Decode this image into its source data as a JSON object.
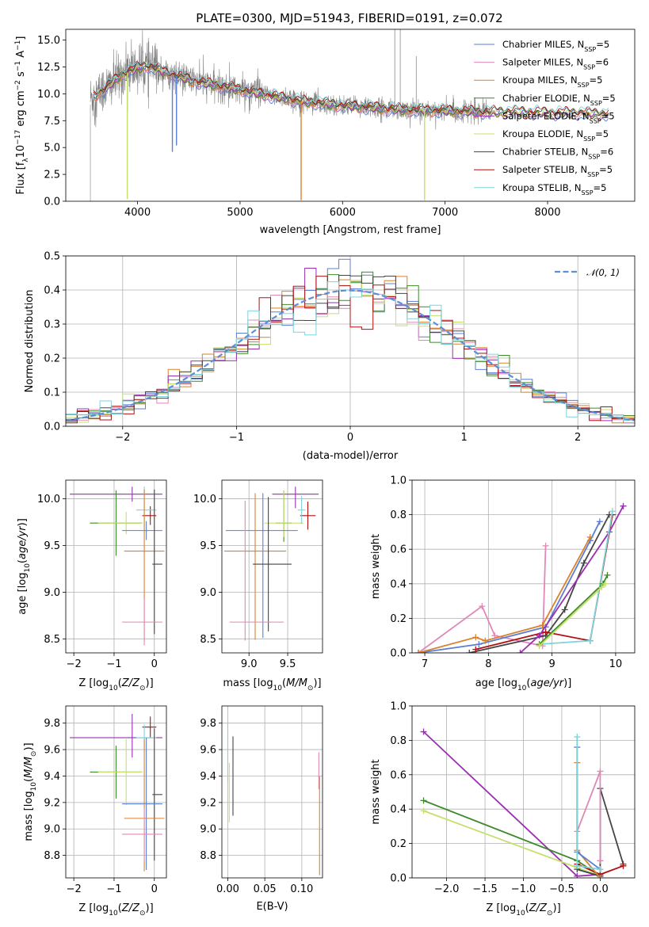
{
  "figure_title": "PLATE=0300, MJD=51943, FIBERID=0191, z=0.072",
  "colors": {
    "Chabrier MILES": "#5b7fd6",
    "Salpeter MILES": "#e088b8",
    "Kroupa MILES": "#d9822b",
    "Chabrier ELODIE": "#3d8a2a",
    "Salpeter ELODIE": "#9a2fb0",
    "Kroupa ELODIE": "#c5e06a",
    "Chabrier STELIB": "#454545",
    "Salpeter STELIB": "#b01010",
    "Kroupa STELIB": "#7fd3dc",
    "data": "#808080",
    "normal": "#5b8fd6"
  },
  "chart_data": [
    {
      "id": "spectrum",
      "type": "line",
      "title": "PLATE=0300, MJD=51943, FIBERID=0191, z=0.072",
      "xlabel": "wavelength [Angstrom, rest frame]",
      "ylabel": "Flux [f_λ10^-17 erg cm^-2 s^-1 A^-1]",
      "xlim": [
        3300,
        8850
      ],
      "ylim": [
        0,
        16
      ],
      "xticks": [
        4000,
        5000,
        6000,
        7000,
        8000
      ],
      "yticks": [
        0.0,
        2.5,
        5.0,
        7.5,
        10.0,
        12.5,
        15.0
      ],
      "grid": false,
      "legend_position": "top-right",
      "legend": [
        "Chabrier MILES, N_SSP=5",
        "Salpeter MILES, N_SSP=6",
        "Kroupa MILES, N_SSP=5",
        "Chabrier ELODIE, N_SSP=5",
        "Salpeter ELODIE, N_SSP=5",
        "Kroupa ELODIE, N_SSP=5",
        "Chabrier STELIB, N_SSP=6",
        "Salpeter STELIB, N_SSP=5",
        "Kroupa STELIB, N_SSP=5"
      ],
      "continuum_x": [
        3550,
        3700,
        3850,
        4000,
        4100,
        4300,
        4500,
        4700,
        5000,
        5300,
        5600,
        6000,
        6300,
        6600,
        7000,
        7400,
        7700,
        8000,
        8300,
        8600
      ],
      "continuum_y": [
        9.6,
        10.6,
        11.8,
        12.4,
        12.6,
        11.9,
        11.3,
        10.9,
        10.4,
        9.8,
        9.3,
        8.9,
        8.7,
        8.5,
        8.4,
        8.3,
        8.3,
        8.2,
        8.2,
        8.1
      ],
      "absorption_lines": [
        [
          3900,
          0.2
        ],
        [
          4340,
          4.6
        ],
        [
          4380,
          5.2
        ],
        [
          5596,
          0.1
        ],
        [
          6800,
          0.1
        ]
      ],
      "emission_lines": [
        [
          6510,
          16.0
        ],
        [
          6563,
          16.0
        ],
        [
          6720,
          13.5
        ]
      ]
    },
    {
      "id": "residuals",
      "type": "histogram",
      "xlabel": "(data-model)/error",
      "ylabel": "Normed distribution",
      "xlim": [
        -2.5,
        2.5
      ],
      "ylim": [
        0,
        0.5
      ],
      "xticks": [
        -2,
        -1,
        0,
        1,
        2
      ],
      "yticks": [
        0.0,
        0.1,
        0.2,
        0.3,
        0.4,
        0.5
      ],
      "grid": true,
      "legend_position": "top-right",
      "legend": [
        "𝒩(0, 1)"
      ],
      "bin_width": 0.1,
      "bin_start": -2.5,
      "gaussian": {
        "mu": 0,
        "sigma": 1
      }
    },
    {
      "id": "age-Z",
      "type": "errorbar",
      "xlabel": "Z [log10(Z/Z⊙)]",
      "ylabel": "age [log10(age/yr)]",
      "xlim": [
        -2.2,
        0.3
      ],
      "ylim": [
        8.35,
        10.2
      ],
      "xticks": [
        -2,
        -1,
        0
      ],
      "yticks": [
        8.5,
        9.0,
        9.5,
        10.0
      ],
      "grid": true,
      "points": [
        {
          "model": "Salpeter ELODIE",
          "x": -0.55,
          "xerr": [
            1.55,
            0.75
          ],
          "y": 10.05,
          "yerr": [
            0.08,
            0.08
          ]
        },
        {
          "model": "Chabrier ELODIE",
          "x": -0.95,
          "xerr": [
            0.65,
            0.65
          ],
          "y": 9.74,
          "yerr": [
            0.35,
            0.35
          ]
        },
        {
          "model": "Kroupa ELODIE",
          "x": -0.7,
          "xerr": [
            0.7,
            0.4
          ],
          "y": 9.74,
          "yerr": [
            0.12,
            0.12
          ]
        },
        {
          "model": "Chabrier MILES",
          "x": -0.2,
          "xerr": [
            0.6,
            0.4
          ],
          "y": 9.66,
          "yerr": [
            0.1,
            0.1
          ]
        },
        {
          "model": "Salpeter STELIB",
          "x": -0.1,
          "xerr": [
            0.2,
            0.15
          ],
          "y": 9.82,
          "yerr": [
            0.1,
            0.1
          ]
        },
        {
          "model": "Kroupa STELIB",
          "x": -0.25,
          "xerr": [
            0.2,
            0.3
          ],
          "y": 9.88,
          "yerr": [
            0.25,
            0.25
          ]
        },
        {
          "model": "Kroupa MILES",
          "x": -0.25,
          "xerr": [
            0.5,
            0.5
          ],
          "y": 9.44,
          "yerr": [
            0.95,
            0.66
          ]
        },
        {
          "model": "Chabrier STELIB",
          "x": 0.0,
          "xerr": [
            0.05,
            0.2
          ],
          "y": 9.3,
          "yerr": [
            0.75,
            0.8
          ]
        },
        {
          "model": "Salpeter MILES",
          "x": -0.25,
          "xerr": [
            0.55,
            0.45
          ],
          "y": 8.68,
          "yerr": [
            0.25,
            0.25
          ]
        }
      ]
    },
    {
      "id": "age-mass",
      "type": "errorbar",
      "xlabel": "mass [log10(M/M⊙)]",
      "ylabel": "",
      "xlim": [
        8.65,
        9.95
      ],
      "ylim": [
        8.35,
        10.2
      ],
      "xticks": [
        9.0,
        9.5
      ],
      "yticks": [
        8.5,
        9.0,
        9.5,
        10.0
      ],
      "grid": true,
      "points": [
        {
          "model": "Salpeter ELODIE",
          "x": 9.6,
          "xerr": [
            0.3,
            0.3
          ],
          "y": 10.05,
          "yerr": [
            0.15,
            0.08
          ]
        },
        {
          "model": "Chabrier ELODIE",
          "x": 9.45,
          "xerr": [
            0.1,
            0.1
          ],
          "y": 9.74,
          "yerr": [
            0.2,
            0.35
          ]
        },
        {
          "model": "Kroupa ELODIE",
          "x": 9.45,
          "xerr": [
            0.25,
            0.25
          ],
          "y": 9.74,
          "yerr": [
            0.15,
            0.35
          ]
        },
        {
          "model": "Salpeter STELIB",
          "x": 9.76,
          "xerr": [
            0.1,
            0.1
          ],
          "y": 9.82,
          "yerr": [
            0.15,
            0.15
          ]
        },
        {
          "model": "Kroupa STELIB",
          "x": 9.68,
          "xerr": [
            0.05,
            0.05
          ],
          "y": 9.88,
          "yerr": [
            0.15,
            0.15
          ]
        },
        {
          "model": "Chabrier MILES",
          "x": 9.18,
          "xerr": [
            0.48,
            0.45
          ],
          "y": 9.66,
          "yerr": [
            1.15,
            0.4
          ]
        },
        {
          "model": "Kroupa MILES",
          "x": 9.08,
          "xerr": [
            0.4,
            0.4
          ],
          "y": 9.44,
          "yerr": [
            0.95,
            0.62
          ]
        },
        {
          "model": "Chabrier STELIB",
          "x": 9.25,
          "xerr": [
            0.2,
            0.3
          ],
          "y": 9.3,
          "yerr": [
            0.72,
            0.72
          ]
        },
        {
          "model": "Salpeter MILES",
          "x": 8.95,
          "xerr": [
            0.2,
            0.5
          ],
          "y": 8.68,
          "yerr": [
            0.2,
            1.3
          ]
        }
      ]
    },
    {
      "id": "weight-age",
      "type": "line",
      "xlabel": "age [log10(age/yr)]",
      "ylabel": "mass weight",
      "xlim": [
        6.8,
        10.3
      ],
      "ylim": [
        0,
        1.0
      ],
      "xticks": [
        7,
        8,
        9,
        10
      ],
      "yticks": [
        0.0,
        0.2,
        0.4,
        0.6,
        0.8,
        1.0
      ],
      "grid": true,
      "series": [
        {
          "model": "Salpeter MILES",
          "x": [
            6.9,
            7.9,
            8.1,
            8.85,
            8.9
          ],
          "y": [
            0.0,
            0.27,
            0.1,
            0.04,
            0.62
          ]
        },
        {
          "model": "Chabrier MILES",
          "x": [
            6.9,
            7.85,
            8.9,
            9.6,
            9.75
          ],
          "y": [
            0.0,
            0.05,
            0.15,
            0.65,
            0.76
          ]
        },
        {
          "model": "Kroupa MILES",
          "x": [
            6.9,
            7.8,
            7.95,
            8.85,
            9.6
          ],
          "y": [
            0.0,
            0.09,
            0.07,
            0.16,
            0.67
          ]
        },
        {
          "model": "Chabrier STELIB",
          "x": [
            7.7,
            8.9,
            9.2,
            9.5,
            9.9
          ],
          "y": [
            0.0,
            0.1,
            0.25,
            0.52,
            0.8
          ]
        },
        {
          "model": "Salpeter STELIB",
          "x": [
            7.8,
            8.9,
            9.6,
            9.95
          ],
          "y": [
            0.02,
            0.12,
            0.07,
            0.8
          ]
        },
        {
          "model": "Salpeter ELODIE",
          "x": [
            8.5,
            8.8,
            9.9,
            10.12
          ],
          "y": [
            0.0,
            0.1,
            0.7,
            0.85
          ]
        },
        {
          "model": "Kroupa STELIB",
          "x": [
            8.8,
            9.6,
            9.95
          ],
          "y": [
            0.05,
            0.07,
            0.82
          ]
        },
        {
          "model": "Chabrier ELODIE",
          "x": [
            8.8,
            9.8,
            9.87
          ],
          "y": [
            0.05,
            0.4,
            0.45
          ]
        },
        {
          "model": "Kroupa ELODIE",
          "x": [
            8.8,
            9.78,
            9.84
          ],
          "y": [
            0.04,
            0.38,
            0.4
          ]
        }
      ]
    },
    {
      "id": "mass-Z",
      "type": "errorbar",
      "xlabel": "Z [log10(Z/Z⊙)]",
      "ylabel": "mass [log10(M/M⊙)]",
      "xlim": [
        -2.2,
        0.3
      ],
      "ylim": [
        8.63,
        9.93
      ],
      "xticks": [
        -2,
        -1,
        0
      ],
      "yticks": [
        8.8,
        9.0,
        9.2,
        9.4,
        9.6,
        9.8
      ],
      "grid": true,
      "points": [
        {
          "model": "Salpeter ELODIE",
          "x": -0.55,
          "xerr": [
            1.55,
            0.75
          ],
          "y": 9.69,
          "yerr": [
            0.15,
            0.18
          ]
        },
        {
          "model": "Salpeter STELIB",
          "x": -0.1,
          "xerr": [
            0.2,
            0.15
          ],
          "y": 9.77,
          "yerr": [
            0.08,
            0.08
          ]
        },
        {
          "model": "Kroupa STELIB",
          "x": -0.25,
          "xerr": [
            0.2,
            0.3
          ],
          "y": 9.69,
          "yerr": [
            0.1,
            0.1
          ]
        },
        {
          "model": "Chabrier ELODIE",
          "x": -0.95,
          "xerr": [
            0.65,
            0.65
          ],
          "y": 9.43,
          "yerr": [
            0.2,
            0.2
          ]
        },
        {
          "model": "Kroupa ELODIE",
          "x": -0.7,
          "xerr": [
            0.7,
            0.4
          ],
          "y": 9.43,
          "yerr": [
            0.25,
            0.25
          ]
        },
        {
          "model": "Chabrier STELIB",
          "x": 0.0,
          "xerr": [
            0.05,
            0.2
          ],
          "y": 9.26,
          "yerr": [
            0.5,
            0.5
          ]
        },
        {
          "model": "Chabrier MILES",
          "x": -0.2,
          "xerr": [
            0.6,
            0.4
          ],
          "y": 9.19,
          "yerr": [
            0.5,
            0.5
          ]
        },
        {
          "model": "Kroupa MILES",
          "x": -0.25,
          "xerr": [
            0.5,
            0.5
          ],
          "y": 9.08,
          "yerr": [
            0.4,
            0.6
          ]
        },
        {
          "model": "Salpeter MILES",
          "x": -0.25,
          "xerr": [
            0.55,
            0.45
          ],
          "y": 8.96,
          "yerr": [
            0.2,
            0.2
          ]
        }
      ]
    },
    {
      "id": "mass-ebv",
      "type": "errorbar",
      "xlabel": "E(B-V)",
      "ylabel": "",
      "xlim": [
        -0.008,
        0.128
      ],
      "ylim": [
        8.63,
        9.93
      ],
      "xticks": [
        0.0,
        0.05,
        0.1
      ],
      "yticks": [
        8.8,
        9.0,
        9.2,
        9.4,
        9.6,
        9.8
      ],
      "grid": true,
      "points": [
        {
          "model": "Kroupa STELIB",
          "x": 0.0,
          "xerr": [
            0,
            0
          ],
          "y": 9.6,
          "yerr": [
            0.25,
            0.2
          ]
        },
        {
          "model": "Kroupa ELODIE",
          "x": 0.002,
          "xerr": [
            0,
            0
          ],
          "y": 9.3,
          "yerr": [
            0.25,
            0.2
          ]
        },
        {
          "model": "Chabrier STELIB",
          "x": 0.007,
          "xerr": [
            0,
            0
          ],
          "y": 9.4,
          "yerr": [
            0.3,
            0.3
          ]
        },
        {
          "model": "Salpeter MILES",
          "x": 0.123,
          "xerr": [
            0,
            0
          ],
          "y": 9.45,
          "yerr": [
            0.15,
            0.13
          ]
        },
        {
          "model": "Kroupa MILES",
          "x": 0.124,
          "xerr": [
            0,
            0
          ],
          "y": 9.1,
          "yerr": [
            0.45,
            0.3
          ]
        }
      ]
    },
    {
      "id": "weight-Z",
      "type": "line",
      "xlabel": "Z [log10(Z/Z⊙)]",
      "ylabel": "mass weight",
      "xlim": [
        -2.45,
        0.45
      ],
      "ylim": [
        0,
        1.0
      ],
      "xticks": [
        -2.0,
        -1.5,
        -1.0,
        -0.5,
        0.0
      ],
      "yticks": [
        0.0,
        0.2,
        0.4,
        0.6,
        0.8,
        1.0
      ],
      "grid": true,
      "series": [
        {
          "model": "Salpeter ELODIE",
          "x": [
            -2.3,
            -0.3,
            0.0
          ],
          "y": [
            0.85,
            0.01,
            0.02
          ]
        },
        {
          "model": "Chabrier ELODIE",
          "x": [
            -2.3,
            -0.3,
            0.0
          ],
          "y": [
            0.45,
            0.1,
            0.01
          ]
        },
        {
          "model": "Kroupa ELODIE",
          "x": [
            -2.3,
            -0.3,
            0.0
          ],
          "y": [
            0.39,
            0.06,
            0.01
          ]
        },
        {
          "model": "Chabrier STELIB",
          "x": [
            -0.3,
            0.0,
            0.0,
            0.3
          ],
          "y": [
            0.05,
            0.01,
            0.52,
            0.08
          ]
        },
        {
          "model": "Salpeter STELIB",
          "x": [
            -0.3,
            0.0,
            0.3
          ],
          "y": [
            0.08,
            0.02,
            0.07
          ]
        },
        {
          "model": "Salpeter MILES",
          "x": [
            -0.3,
            0.0,
            0.0
          ],
          "y": [
            0.27,
            0.62,
            0.1
          ]
        },
        {
          "model": "Kroupa MILES",
          "x": [
            -0.3,
            -0.3,
            0.0
          ],
          "y": [
            0.67,
            0.16,
            0.0
          ]
        },
        {
          "model": "Chabrier MILES",
          "x": [
            -0.3,
            -0.3,
            0.0
          ],
          "y": [
            0.76,
            0.15,
            0.05
          ]
        },
        {
          "model": "Kroupa STELIB",
          "x": [
            -0.3,
            -0.3,
            0.0
          ],
          "y": [
            0.82,
            0.07,
            0.05
          ]
        }
      ]
    }
  ]
}
